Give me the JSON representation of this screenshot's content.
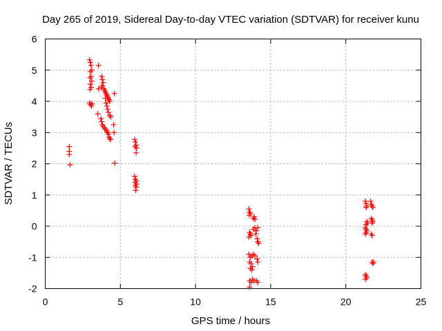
{
  "chart_data": {
    "type": "scatter",
    "title": "Day 265 of 2019, Sidereal Day-to-day VTEC variation (SDTVAR) for receiver kunu",
    "xlabel": "GPS time / hours",
    "ylabel": "SDTVAR / TECUs",
    "xlim": [
      0,
      25
    ],
    "ylim": [
      -2,
      6
    ],
    "xticks": [
      0,
      5,
      10,
      15,
      20,
      25
    ],
    "yticks": [
      -2,
      -1,
      0,
      1,
      2,
      3,
      4,
      5,
      6
    ],
    "grid": true,
    "marker": "+",
    "color": "#ff0000",
    "series": [
      {
        "name": "SDTVAR",
        "points": [
          [
            1.6,
            2.55
          ],
          [
            1.6,
            2.4
          ],
          [
            1.6,
            2.3
          ],
          [
            1.65,
            1.97
          ],
          [
            2.95,
            5.33
          ],
          [
            3.0,
            5.25
          ],
          [
            3.05,
            5.15
          ],
          [
            3.1,
            5.0
          ],
          [
            3.0,
            4.95
          ],
          [
            3.05,
            4.8
          ],
          [
            2.98,
            4.75
          ],
          [
            3.1,
            4.65
          ],
          [
            3.0,
            4.55
          ],
          [
            3.05,
            4.45
          ],
          [
            2.98,
            4.38
          ],
          [
            2.95,
            3.95
          ],
          [
            3.0,
            3.9
          ],
          [
            3.08,
            3.85
          ],
          [
            3.12,
            3.92
          ],
          [
            3.5,
            3.6
          ],
          [
            3.55,
            5.15
          ],
          [
            3.55,
            4.4
          ],
          [
            3.75,
            4.8
          ],
          [
            3.8,
            4.7
          ],
          [
            3.85,
            4.6
          ],
          [
            3.8,
            4.5
          ],
          [
            3.75,
            4.45
          ],
          [
            3.9,
            4.4
          ],
          [
            3.95,
            4.35
          ],
          [
            4.0,
            4.3
          ],
          [
            4.05,
            4.25
          ],
          [
            4.1,
            4.2
          ],
          [
            4.15,
            4.15
          ],
          [
            4.2,
            4.1
          ],
          [
            4.25,
            4.05
          ],
          [
            4.3,
            4.0
          ],
          [
            4.0,
            4.1
          ],
          [
            4.05,
            3.95
          ],
          [
            4.1,
            3.85
          ],
          [
            4.15,
            3.75
          ],
          [
            4.2,
            3.65
          ],
          [
            4.3,
            3.55
          ],
          [
            4.35,
            3.5
          ],
          [
            3.7,
            3.45
          ],
          [
            3.75,
            3.35
          ],
          [
            3.8,
            3.25
          ],
          [
            3.85,
            3.2
          ],
          [
            3.95,
            3.15
          ],
          [
            4.0,
            3.1
          ],
          [
            4.1,
            3.05
          ],
          [
            4.15,
            3.0
          ],
          [
            4.2,
            2.95
          ],
          [
            4.25,
            2.85
          ],
          [
            4.3,
            2.8
          ],
          [
            4.35,
            2.78
          ],
          [
            4.6,
            4.25
          ],
          [
            4.55,
            3.25
          ],
          [
            4.58,
            3.0
          ],
          [
            4.62,
            2.02
          ],
          [
            5.95,
            2.78
          ],
          [
            6.0,
            2.7
          ],
          [
            6.05,
            2.6
          ],
          [
            5.98,
            2.55
          ],
          [
            6.08,
            2.5
          ],
          [
            6.05,
            2.35
          ],
          [
            5.95,
            1.6
          ],
          [
            6.0,
            1.5
          ],
          [
            6.05,
            1.45
          ],
          [
            5.98,
            1.4
          ],
          [
            6.08,
            1.35
          ],
          [
            6.0,
            1.3
          ],
          [
            6.05,
            1.25
          ],
          [
            6.02,
            1.15
          ],
          [
            13.55,
            0.55
          ],
          [
            13.6,
            0.45
          ],
          [
            13.65,
            0.4
          ],
          [
            13.58,
            0.35
          ],
          [
            13.9,
            0.3
          ],
          [
            13.95,
            0.22
          ],
          [
            13.85,
            0.25
          ],
          [
            13.6,
            -0.2
          ],
          [
            13.65,
            -0.25
          ],
          [
            13.7,
            -0.3
          ],
          [
            13.55,
            -0.35
          ],
          [
            13.85,
            -0.1
          ],
          [
            13.95,
            -0.05
          ],
          [
            14.05,
            -0.15
          ],
          [
            14.15,
            -0.05
          ],
          [
            14.0,
            -0.25
          ],
          [
            14.1,
            -0.4
          ],
          [
            14.15,
            -0.5
          ],
          [
            14.2,
            -0.55
          ],
          [
            13.55,
            -0.9
          ],
          [
            13.65,
            -1.0
          ],
          [
            13.75,
            -0.95
          ],
          [
            13.85,
            -0.9
          ],
          [
            13.95,
            -0.95
          ],
          [
            13.6,
            -1.15
          ],
          [
            13.7,
            -1.2
          ],
          [
            13.8,
            -1.3
          ],
          [
            13.75,
            -1.4
          ],
          [
            13.65,
            -1.35
          ],
          [
            14.1,
            -1.05
          ],
          [
            14.15,
            -1.15
          ],
          [
            13.6,
            -1.75
          ],
          [
            13.7,
            -1.8
          ],
          [
            13.8,
            -1.7
          ],
          [
            13.9,
            -1.75
          ],
          [
            14.05,
            -1.75
          ],
          [
            14.15,
            -1.8
          ],
          [
            13.6,
            -1.95
          ],
          [
            21.3,
            0.8
          ],
          [
            21.35,
            0.72
          ],
          [
            21.4,
            0.65
          ],
          [
            21.35,
            0.6
          ],
          [
            21.65,
            0.8
          ],
          [
            21.7,
            0.7
          ],
          [
            21.75,
            0.65
          ],
          [
            21.8,
            0.6
          ],
          [
            21.4,
            0.15
          ],
          [
            21.45,
            0.1
          ],
          [
            21.35,
            0.05
          ],
          [
            21.3,
            -0.05
          ],
          [
            21.35,
            -0.1
          ],
          [
            21.4,
            -0.15
          ],
          [
            21.35,
            -0.2
          ],
          [
            21.3,
            -0.25
          ],
          [
            21.7,
            0.25
          ],
          [
            21.75,
            0.2
          ],
          [
            21.8,
            0.15
          ],
          [
            21.75,
            0.1
          ],
          [
            21.7,
            -0.25
          ],
          [
            21.75,
            -0.3
          ],
          [
            21.75,
            -1.15
          ],
          [
            21.8,
            -1.2
          ],
          [
            21.85,
            -1.15
          ],
          [
            21.3,
            -1.55
          ],
          [
            21.35,
            -1.6
          ],
          [
            21.4,
            -1.65
          ],
          [
            21.3,
            -1.7
          ]
        ]
      }
    ]
  }
}
